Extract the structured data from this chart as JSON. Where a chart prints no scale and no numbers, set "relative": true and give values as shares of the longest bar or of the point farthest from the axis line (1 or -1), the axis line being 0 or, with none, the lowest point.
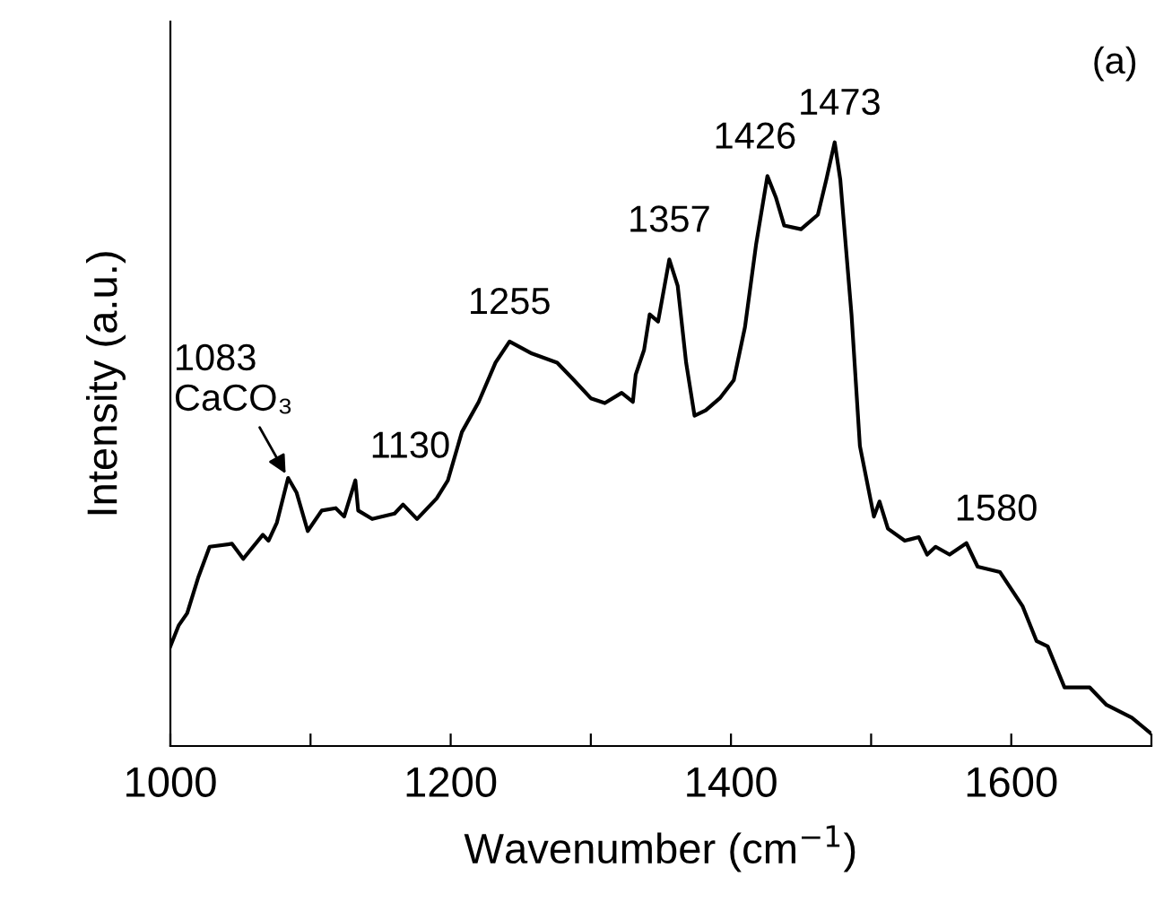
{
  "chart_data": {
    "type": "line",
    "relative": true,
    "xlabel": "Wavenumber (cm$^{−1}$)",
    "ylabel": "Intensity (a.u.)",
    "xlim": [
      1000,
      1700
    ],
    "xticks": [
      1000,
      {
        "value": 1100,
        "label": null
      },
      1200,
      {
        "value": 1300,
        "label": null
      },
      1400,
      {
        "value": 1500,
        "label": null
      },
      1600,
      {
        "value": 1700,
        "label": null
      }
    ],
    "series": [
      {
        "color": "#000000",
        "x": [
          1000,
          1006,
          1012,
          1020,
          1028,
          1044,
          1052,
          1066,
          1070,
          1076,
          1084,
          1090,
          1098,
          1108,
          1118,
          1124,
          1132,
          1134,
          1144,
          1160,
          1166,
          1176,
          1190,
          1198,
          1208,
          1220,
          1232,
          1242,
          1258,
          1276,
          1288,
          1300,
          1310,
          1322,
          1330,
          1332,
          1338,
          1342,
          1348,
          1356,
          1362,
          1368,
          1374,
          1382,
          1392,
          1402,
          1410,
          1418,
          1426,
          1432,
          1438,
          1450,
          1462,
          1468,
          1474,
          1478,
          1486,
          1492,
          1502,
          1506,
          1512,
          1524,
          1534,
          1540,
          1546,
          1556,
          1568,
          1576,
          1592,
          1608,
          1618,
          1626,
          1638,
          1656,
          1668,
          1686,
          1700
        ],
        "values": [
          0.165,
          0.2,
          0.22,
          0.28,
          0.33,
          0.335,
          0.31,
          0.35,
          0.34,
          0.37,
          0.444,
          0.42,
          0.356,
          0.39,
          0.394,
          0.38,
          0.44,
          0.39,
          0.376,
          0.385,
          0.4,
          0.376,
          0.41,
          0.44,
          0.52,
          0.57,
          0.635,
          0.67,
          0.65,
          0.635,
          0.606,
          0.576,
          0.568,
          0.585,
          0.57,
          0.615,
          0.656,
          0.715,
          0.703,
          0.806,
          0.762,
          0.635,
          0.547,
          0.556,
          0.576,
          0.606,
          0.694,
          0.832,
          0.944,
          0.909,
          0.862,
          0.856,
          0.88,
          0.938,
          1.0,
          0.938,
          0.715,
          0.497,
          0.38,
          0.405,
          0.36,
          0.34,
          0.346,
          0.317,
          0.33,
          0.317,
          0.336,
          0.297,
          0.288,
          0.232,
          0.174,
          0.165,
          0.097,
          0.097,
          0.068,
          0.047,
          0.02
        ]
      }
    ],
    "annotations": [
      {
        "text": "1083\nCaCO₃",
        "x": 1084,
        "y": 0.444
      },
      {
        "text": "1130",
        "x": 1132,
        "y": 0.44
      },
      {
        "text": "1255",
        "x": 1242,
        "y": 0.67
      },
      {
        "text": "1357",
        "x": 1356,
        "y": 0.806
      },
      {
        "text": "1426",
        "x": 1426,
        "y": 0.944
      },
      {
        "text": "1473",
        "x": 1474,
        "y": 1.0
      },
      {
        "text": "1580",
        "x": 1568,
        "y": 0.336
      },
      "(a)"
    ],
    "grid": false,
    "legend": false
  }
}
